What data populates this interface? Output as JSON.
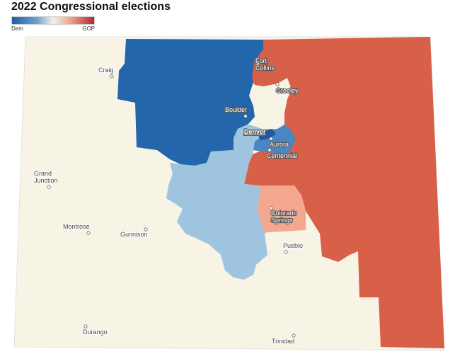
{
  "title": "2022 Congressional elections",
  "legend": {
    "left_label": "Dem",
    "right_label": "GOP"
  },
  "colors": {
    "state_background": "#f7f4e6",
    "safe_dem": "#2466ab",
    "lean_dem": "#9fc4e0",
    "mid_dem": "#4a86c4",
    "safe_gop": "#d85f48",
    "lean_gop": "#f2a78e",
    "neutral": "#f7f4e6"
  },
  "districts": [
    {
      "id": "north-central",
      "party": "Dem",
      "color": "#2466ab"
    },
    {
      "id": "east",
      "party": "GOP",
      "color": "#d85f48"
    },
    {
      "id": "central",
      "party": "Dem",
      "color": "#9fc4e0"
    },
    {
      "id": "colorado-springs",
      "party": "GOP",
      "color": "#f2a78e"
    },
    {
      "id": "denver-metro",
      "party": "Dem",
      "color": "#4a86c4"
    }
  ],
  "cities": [
    {
      "name": "Fort Collins",
      "lines": [
        "Fort",
        "Collins"
      ]
    },
    {
      "name": "Greeley",
      "lines": [
        "Greeley"
      ]
    },
    {
      "name": "Boulder",
      "lines": [
        "Boulder"
      ]
    },
    {
      "name": "Denver",
      "lines": [
        "Denver"
      ]
    },
    {
      "name": "Aurora",
      "lines": [
        "Aurora"
      ]
    },
    {
      "name": "Centennial",
      "lines": [
        "Centennial"
      ]
    },
    {
      "name": "Colorado Springs",
      "lines": [
        "Colorado",
        "Springs"
      ]
    },
    {
      "name": "Pueblo",
      "lines": [
        "Pueblo"
      ]
    },
    {
      "name": "Craig",
      "lines": [
        "Craig"
      ]
    },
    {
      "name": "Grand Junction",
      "lines": [
        "Grand",
        "Junction"
      ]
    },
    {
      "name": "Montrose",
      "lines": [
        "Montrose"
      ]
    },
    {
      "name": "Gunnison",
      "lines": [
        "Gunnison"
      ]
    },
    {
      "name": "Durango",
      "lines": [
        "Durango"
      ]
    },
    {
      "name": "Trinidad",
      "lines": [
        "Trinidad"
      ]
    }
  ]
}
